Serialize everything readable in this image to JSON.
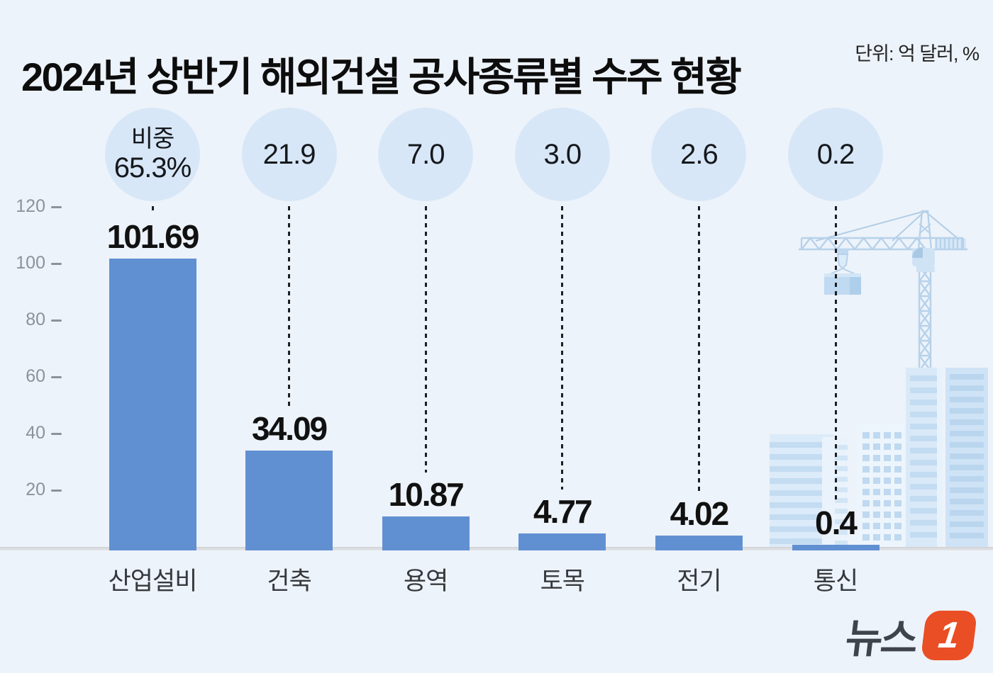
{
  "header": {
    "title": "2024년 상반기 해외건설 공사종류별 수주 현황",
    "unit_note": "단위: 억 달러, %"
  },
  "chart_data": {
    "type": "bar",
    "title": "2024년 상반기 해외건설 공사종류별 수주 현황",
    "unit": "억 달러, %",
    "categories": [
      "산업설비",
      "건축",
      "용역",
      "토목",
      "전기",
      "통신"
    ],
    "values": [
      101.69,
      34.09,
      10.87,
      4.77,
      4.02,
      0.4
    ],
    "value_labels": [
      "101.69",
      "34.09",
      "10.87",
      "4.77",
      "4.02",
      "0.4"
    ],
    "share_percent": [
      65.3,
      21.9,
      7.0,
      3.0,
      2.6,
      0.2
    ],
    "bubble_labels": [
      [
        "비중",
        "65.3%"
      ],
      [
        "21.9"
      ],
      [
        "7.0"
      ],
      [
        "3.0"
      ],
      [
        "2.6"
      ],
      [
        "0.2"
      ]
    ],
    "y_ticks": [
      120,
      100,
      80,
      60,
      40,
      20
    ],
    "ylim": [
      0,
      120
    ],
    "xlabel": "",
    "ylabel": "",
    "grid": false,
    "legend": "none",
    "annotations": "decorative tower-crane and buildings illustration behind last column"
  },
  "footer": {
    "logo_text": "뉴스",
    "logo_badge": "1"
  },
  "colors": {
    "background": "#edf3fa",
    "bar": "#6190d2",
    "bubble": "#d8e7f7",
    "baseline": "#d4d6d9",
    "axis_text": "#8d9299",
    "value_text": "#111111",
    "logo_accent": "#ea4e25",
    "illustration_outline": "#b7d2ea",
    "illustration_fill": "#dcebf9"
  }
}
